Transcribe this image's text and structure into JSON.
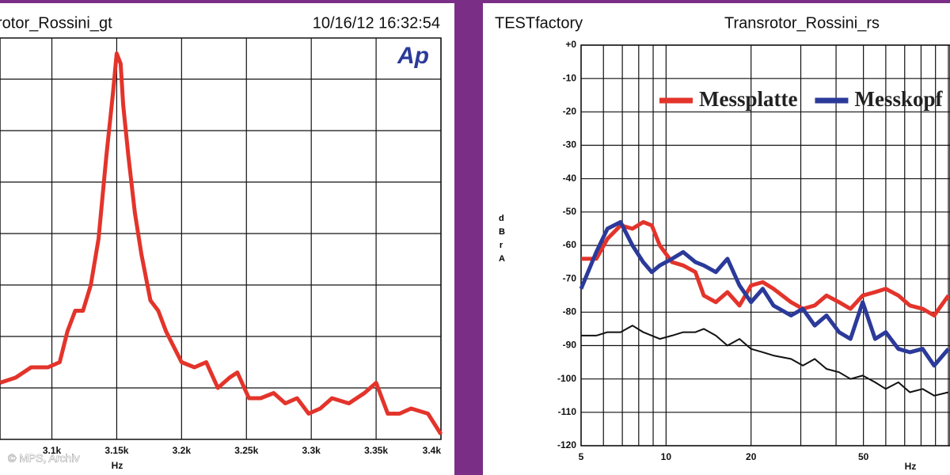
{
  "watermark": "© MPS, Archiv",
  "chart_data": [
    {
      "type": "line",
      "title": "rotor_Rossini_gt",
      "date": "10/16/12 16:32:54",
      "logo": "Ap",
      "x_label": "Hz",
      "x": [
        3060,
        3072,
        3084,
        3097,
        3106,
        3112,
        3118,
        3124,
        3130,
        3136,
        3142,
        3147,
        3150,
        3153,
        3155,
        3159,
        3164,
        3169,
        3176,
        3182,
        3188,
        3194,
        3200,
        3210,
        3219,
        3228,
        3237,
        3243,
        3252,
        3261,
        3271,
        3280,
        3289,
        3298,
        3307,
        3316,
        3329,
        3341,
        3350,
        3359,
        3368,
        3377,
        3390,
        3400
      ],
      "series": [
        {
          "color": "#e3342b",
          "values": [
            1.1,
            1.2,
            1.4,
            1.4,
            1.5,
            2.1,
            2.5,
            2.5,
            3.0,
            3.9,
            5.5,
            6.7,
            7.5,
            7.3,
            6.5,
            5.5,
            4.4,
            3.6,
            2.7,
            2.5,
            2.1,
            1.8,
            1.5,
            1.4,
            1.5,
            1.0,
            1.2,
            1.3,
            0.8,
            0.8,
            0.9,
            0.7,
            0.8,
            0.5,
            0.6,
            0.8,
            0.7,
            0.9,
            1.1,
            0.5,
            0.5,
            0.6,
            0.5,
            0.1
          ]
        }
      ],
      "xlim": [
        3060,
        3400
      ],
      "xticks": [
        {
          "value": 3100,
          "label": "3.1k"
        },
        {
          "value": 3150,
          "label": "3.15k"
        },
        {
          "value": 3200,
          "label": "3.2k"
        },
        {
          "value": 3250,
          "label": "3.25k"
        },
        {
          "value": 3300,
          "label": "3.3k"
        },
        {
          "value": 3350,
          "label": "3.35k"
        },
        {
          "value": 3400,
          "label": "3.4k"
        }
      ],
      "ylim": [
        0,
        7.8
      ]
    },
    {
      "type": "line",
      "header": "TESTfactory",
      "title": "Transrotor_Rossini_rs",
      "x_label": "Hz",
      "y_label": "dBr A",
      "xscale": "log",
      "x": [
        5,
        5.66,
        6.2,
        6.9,
        7.6,
        8.3,
        8.9,
        9.5,
        10.5,
        11.5,
        12.7,
        13.6,
        15,
        16.5,
        18.2,
        20,
        22,
        24,
        27.7,
        30.5,
        33.6,
        37,
        41,
        45,
        49.7,
        55,
        60,
        66.5,
        73,
        81,
        89,
        100
      ],
      "series": [
        {
          "name": "Messplatte",
          "color": "#e3342b",
          "values": [
            -64,
            -64,
            -58,
            -54,
            -55,
            -53,
            -54,
            -60,
            -65,
            -66,
            -68,
            -75,
            -77,
            -74,
            -78,
            -72,
            -71,
            -73,
            -77,
            -79,
            -78,
            -75,
            -77,
            -79,
            -75,
            -74,
            -73,
            -75,
            -78,
            -79,
            -81,
            -75
          ]
        },
        {
          "name": "Messkopf",
          "color": "#2b3a9a",
          "values": [
            -73,
            -62,
            -55,
            -53,
            -60,
            -65,
            -68,
            -66,
            -64,
            -62,
            -65,
            -66,
            -68,
            -64,
            -72,
            -77,
            -73,
            -78,
            -81,
            -79,
            -84,
            -81,
            -86,
            -88,
            -77,
            -88,
            -86,
            -91,
            -92,
            -91,
            -96,
            -91
          ]
        },
        {
          "color": "#111111",
          "values": [
            -87,
            -87,
            -86,
            -86,
            -84,
            -86,
            -87,
            -88,
            -87,
            -86,
            -86,
            -85,
            -87,
            -90,
            -88,
            -91,
            -92,
            -93,
            -94,
            -96,
            -94,
            -97,
            -98,
            -100,
            -99,
            -101,
            -103,
            -101,
            -104,
            -103,
            -105,
            -104
          ]
        }
      ],
      "xlim": [
        5,
        100
      ],
      "xticks": [
        5,
        10,
        20,
        50
      ],
      "xgrid_minor": [
        6,
        7,
        8,
        9,
        30,
        40,
        60,
        70,
        80,
        90,
        100
      ],
      "ylim": [
        -120,
        0
      ],
      "yticks": [
        {
          "value": 0,
          "label": "+0"
        },
        -10,
        -20,
        -30,
        -40,
        -50,
        -60,
        -70,
        -80,
        -90,
        -100,
        -110,
        -120
      ]
    }
  ]
}
